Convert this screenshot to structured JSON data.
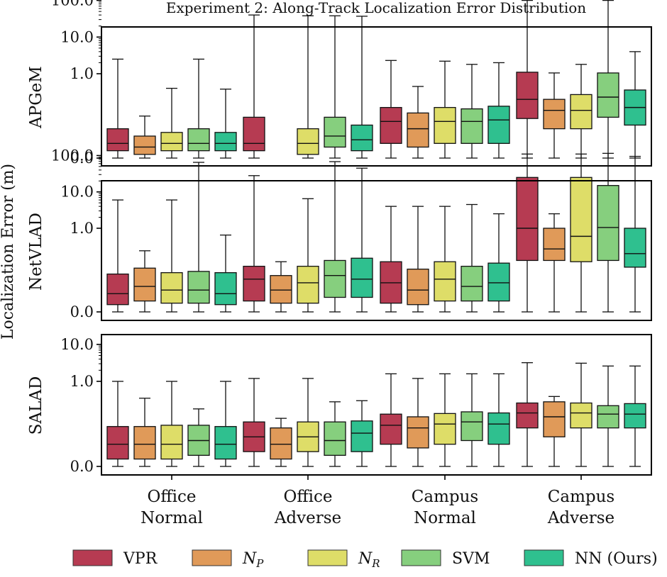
{
  "chart_data": {
    "type": "boxplot",
    "title": "Experiment 2: Along-Track Localization Error Distribution",
    "ylabel": "Localization Error (m)",
    "yscale": "symlog",
    "categories": [
      [
        "Office",
        "Normal"
      ],
      [
        "Office",
        "Adverse"
      ],
      [
        "Campus",
        "Normal"
      ],
      [
        "Campus",
        "Adverse"
      ]
    ],
    "series": [
      {
        "name": "VPR",
        "color": "#b63b52"
      },
      {
        "name": "N",
        "sub": "P",
        "color": "#e09a59"
      },
      {
        "name": "N",
        "sub": "R",
        "color": "#dedd68"
      },
      {
        "name": "SVM",
        "color": "#86cf7e"
      },
      {
        "name": "NN (Ours)",
        "color": "#2fc08f"
      }
    ],
    "panels": [
      {
        "name": "APGeM",
        "ytick_labels": [
          "0.0",
          "1.0",
          "10.0",
          "100.0"
        ],
        "ytick_values": [
          0,
          1,
          10,
          100
        ],
        "boxes": [
          [
            {
              "min": 0,
              "q1": 0.01,
              "med": 0.02,
              "q3": 0.04,
              "max": 2.5
            },
            {
              "min": 0,
              "q1": 0.005,
              "med": 0.015,
              "q3": 0.03,
              "max": 0.07
            },
            {
              "min": 0,
              "q1": 0.01,
              "med": 0.02,
              "q3": 0.035,
              "max": 0.4
            },
            {
              "min": 0,
              "q1": 0.01,
              "med": 0.02,
              "q3": 0.04,
              "max": 2.5
            },
            {
              "min": 0,
              "q1": 0.01,
              "med": 0.02,
              "q3": 0.035,
              "max": 0.38
            }
          ],
          [
            {
              "min": 0,
              "q1": 0.01,
              "med": 0.02,
              "q3": 0.065,
              "max": 40
            },
            null,
            {
              "min": 0,
              "q1": 0.005,
              "med": 0.02,
              "q3": 0.04,
              "max": 38
            },
            {
              "min": 0,
              "q1": 0.015,
              "med": 0.03,
              "q3": 0.065,
              "max": 38
            },
            {
              "min": 0,
              "q1": 0.01,
              "med": 0.025,
              "q3": 0.045,
              "max": 37
            }
          ],
          [
            {
              "min": 0,
              "q1": 0.02,
              "med": 0.05,
              "q3": 0.12,
              "max": 2.3
            },
            {
              "min": 0,
              "q1": 0.015,
              "med": 0.04,
              "q3": 0.085,
              "max": 0.45
            },
            {
              "min": 0,
              "q1": 0.02,
              "med": 0.05,
              "q3": 0.12,
              "max": 2.2
            },
            {
              "min": 0,
              "q1": 0.02,
              "med": 0.05,
              "q3": 0.11,
              "max": 1.8
            },
            {
              "min": 0,
              "q1": 0.02,
              "med": 0.055,
              "q3": 0.13,
              "max": 2.0
            }
          ],
          [
            {
              "min": 0,
              "q1": 0.06,
              "med": 0.2,
              "q3": 1.1,
              "max": 100
            },
            {
              "min": 0,
              "q1": 0.04,
              "med": 0.1,
              "q3": 0.2,
              "max": 1.05
            },
            {
              "min": 0,
              "q1": 0.04,
              "med": 0.1,
              "q3": 0.27,
              "max": 1.8
            },
            {
              "min": 0,
              "q1": 0.065,
              "med": 0.23,
              "q3": 1.05,
              "max": 100
            },
            {
              "min": 0,
              "q1": 0.045,
              "med": 0.12,
              "q3": 0.36,
              "max": 4.0
            }
          ]
        ]
      },
      {
        "name": "NetVLAD",
        "ytick_labels": [
          "0.0",
          "1.0",
          "10.0",
          "100.0"
        ],
        "ytick_values": [
          0,
          1,
          10,
          100
        ],
        "boxes": [
          [
            {
              "min": 0,
              "q1": 0.01,
              "med": 0.025,
              "q3": 0.055,
              "max": 6.0
            },
            {
              "min": 0,
              "q1": 0.015,
              "med": 0.035,
              "q3": 0.08,
              "max": 0.24
            },
            {
              "min": 0,
              "q1": 0.012,
              "med": 0.03,
              "q3": 0.06,
              "max": 6.0
            },
            {
              "min": 0,
              "q1": 0.012,
              "med": 0.03,
              "q3": 0.065,
              "max": 65
            },
            {
              "min": 0,
              "q1": 0.01,
              "med": 0.025,
              "q3": 0.06,
              "max": 0.65
            }
          ],
          [
            {
              "min": 0,
              "q1": 0.015,
              "med": 0.045,
              "q3": 0.09,
              "max": 28
            },
            {
              "min": 0,
              "q1": 0.012,
              "med": 0.03,
              "q3": 0.05,
              "max": 0.12
            },
            {
              "min": 0,
              "q1": 0.012,
              "med": 0.04,
              "q3": 0.09,
              "max": 6.5
            },
            {
              "min": 0,
              "q1": 0.02,
              "med": 0.05,
              "q3": 0.13,
              "max": 68
            },
            {
              "min": 0,
              "q1": 0.02,
              "med": 0.045,
              "q3": 0.15,
              "max": 45
            }
          ],
          [
            {
              "min": 0,
              "q1": 0.012,
              "med": 0.04,
              "q3": 0.12,
              "max": 4.0
            },
            {
              "min": 0,
              "q1": 0.01,
              "med": 0.03,
              "q3": 0.075,
              "max": 4.0
            },
            {
              "min": 0,
              "q1": 0.015,
              "med": 0.045,
              "q3": 0.12,
              "max": 4.0
            },
            {
              "min": 0,
              "q1": 0.015,
              "med": 0.035,
              "q3": 0.09,
              "max": 4.5
            },
            {
              "min": 0,
              "q1": 0.015,
              "med": 0.04,
              "q3": 0.11,
              "max": 2.5
            }
          ],
          [
            {
              "min": 0,
              "q1": 0.13,
              "med": 1.0,
              "q3": 25,
              "max": 110
            },
            {
              "min": 0,
              "q1": 0.13,
              "med": 0.27,
              "q3": 1.0,
              "max": 2.5
            },
            {
              "min": 0,
              "q1": 0.12,
              "med": 0.6,
              "q3": 25,
              "max": 110
            },
            {
              "min": 0,
              "q1": 0.13,
              "med": 1.05,
              "q3": 15,
              "max": 115
            },
            {
              "min": 0,
              "q1": 0.085,
              "med": 0.2,
              "q3": 1.0,
              "max": 95
            }
          ]
        ]
      },
      {
        "name": "SALAD",
        "ytick_labels": [
          "0.0",
          "1.0",
          "10.0"
        ],
        "ytick_values": [
          0,
          1,
          10
        ],
        "boxes": [
          [
            {
              "min": 0,
              "q1": 0.01,
              "med": 0.03,
              "q3": 0.06,
              "max": 1.0
            },
            {
              "min": 0,
              "q1": 0.01,
              "med": 0.03,
              "q3": 0.06,
              "max": 0.35
            },
            {
              "min": 0,
              "q1": 0.01,
              "med": 0.03,
              "q3": 0.065,
              "max": 1.0
            },
            {
              "min": 0,
              "q1": 0.015,
              "med": 0.035,
              "q3": 0.065,
              "max": 0.18
            },
            {
              "min": 0,
              "q1": 0.01,
              "med": 0.03,
              "q3": 0.06,
              "max": 1.0
            }
          ],
          [
            {
              "min": 0,
              "q1": 0.02,
              "med": 0.04,
              "q3": 0.08,
              "max": 1.2
            },
            {
              "min": 0,
              "q1": 0.01,
              "med": 0.03,
              "q3": 0.055,
              "max": 0.1
            },
            {
              "min": 0,
              "q1": 0.02,
              "med": 0.04,
              "q3": 0.08,
              "max": 1.2
            },
            {
              "min": 0,
              "q1": 0.015,
              "med": 0.035,
              "q3": 0.08,
              "max": 0.28
            },
            {
              "min": 0,
              "q1": 0.02,
              "med": 0.045,
              "q3": 0.085,
              "max": 0.3
            }
          ],
          [
            {
              "min": 0,
              "q1": 0.03,
              "med": 0.065,
              "q3": 0.13,
              "max": 1.6
            },
            {
              "min": 0,
              "q1": 0.025,
              "med": 0.055,
              "q3": 0.11,
              "max": 1.2
            },
            {
              "min": 0,
              "q1": 0.03,
              "med": 0.07,
              "q3": 0.135,
              "max": 1.6
            },
            {
              "min": 0,
              "q1": 0.035,
              "med": 0.08,
              "q3": 0.15,
              "max": 1.6
            },
            {
              "min": 0,
              "q1": 0.03,
              "med": 0.07,
              "q3": 0.14,
              "max": 1.6
            }
          ],
          [
            {
              "min": 0,
              "q1": 0.055,
              "med": 0.14,
              "q3": 0.26,
              "max": 3.2
            },
            {
              "min": 0,
              "q1": 0.04,
              "med": 0.11,
              "q3": 0.28,
              "max": 0.39
            },
            {
              "min": 0,
              "q1": 0.055,
              "med": 0.14,
              "q3": 0.26,
              "max": 3.1
            },
            {
              "min": 0,
              "q1": 0.055,
              "med": 0.13,
              "q3": 0.22,
              "max": 2.6
            },
            {
              "min": 0,
              "q1": 0.055,
              "med": 0.13,
              "q3": 0.25,
              "max": 2.6
            }
          ]
        ]
      }
    ]
  }
}
